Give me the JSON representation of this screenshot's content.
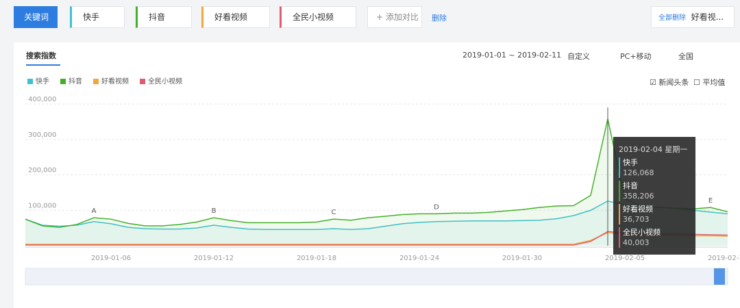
{
  "tabs": {
    "keyword": "关键词",
    "terms": [
      "快手",
      "抖音",
      "好看视频",
      "全民小视频"
    ],
    "add": "+ 添加对比",
    "clear": "删除"
  },
  "right": {
    "link": "全部删除",
    "term": "好看视..."
  },
  "toolbar": {
    "title": "搜索指数",
    "range": "2019-01-01 ~ 2019-02-11",
    "mode": "自定义",
    "device": "PC+移动",
    "region": "全国"
  },
  "options": [
    "新闻头条",
    "平均值"
  ],
  "tooltip": {
    "title": "2019-02-04 星期一",
    "labels": [
      "126,068",
      "358,206",
      "36,703",
      "40,003"
    ]
  },
  "chart_data": {
    "type": "line",
    "x": [
      "2019-01-01",
      "2019-01-02",
      "2019-01-03",
      "2019-01-04",
      "2019-01-05",
      "2019-01-06",
      "2019-01-07",
      "2019-01-08",
      "2019-01-09",
      "2019-01-10",
      "2019-01-11",
      "2019-01-12",
      "2019-01-13",
      "2019-01-14",
      "2019-01-15",
      "2019-01-16",
      "2019-01-17",
      "2019-01-18",
      "2019-01-19",
      "2019-01-20",
      "2019-01-21",
      "2019-01-22",
      "2019-01-23",
      "2019-01-24",
      "2019-01-25",
      "2019-01-26",
      "2019-01-27",
      "2019-01-28",
      "2019-01-29",
      "2019-01-30",
      "2019-01-31",
      "2019-02-01",
      "2019-02-02",
      "2019-02-03",
      "2019-02-04",
      "2019-02-05",
      "2019-02-06",
      "2019-02-07",
      "2019-02-08",
      "2019-02-09",
      "2019-02-10",
      "2019-02-11"
    ],
    "series": [
      {
        "name": "快手",
        "color": "#3ec1d3",
        "area": true,
        "values": [
          75000,
          58000,
          55000,
          58000,
          68000,
          62000,
          52000,
          48000,
          47000,
          47000,
          50000,
          58000,
          52000,
          47000,
          46000,
          46000,
          46000,
          46000,
          48000,
          46000,
          48000,
          55000,
          62000,
          66000,
          68000,
          69000,
          70000,
          70000,
          70000,
          71000,
          72000,
          76000,
          85000,
          100000,
          126068,
          115000,
          110000,
          108000,
          105000,
          100000,
          95000,
          90000
        ]
      },
      {
        "name": "抖音",
        "color": "#43b02a",
        "area": true,
        "values": [
          75000,
          56000,
          52000,
          60000,
          79000,
          75000,
          63000,
          56000,
          56000,
          60000,
          67000,
          79000,
          71000,
          65000,
          65000,
          65000,
          65000,
          67000,
          75000,
          72000,
          79000,
          83000,
          88000,
          90000,
          90000,
          92000,
          92000,
          94000,
          98000,
          102000,
          108000,
          112000,
          113000,
          142000,
          358206,
          133000,
          110000,
          108000,
          106000,
          104000,
          108000,
          96000
        ]
      },
      {
        "name": "好看视频",
        "color": "#f3a63b",
        "area": false,
        "values": [
          4000,
          4000,
          4000,
          4000,
          4000,
          4000,
          4000,
          4000,
          4000,
          4000,
          4000,
          4000,
          4000,
          4000,
          4000,
          4000,
          4000,
          4000,
          4000,
          4000,
          4000,
          4000,
          4000,
          4000,
          4000,
          4000,
          4000,
          4000,
          4000,
          4000,
          4000,
          4000,
          4000,
          15000,
          36703,
          32000,
          30000,
          29000,
          29000,
          28000,
          28000,
          27000
        ]
      },
      {
        "name": "全民小视频",
        "color": "#e05d6f",
        "area": false,
        "values": [
          2000,
          2000,
          2000,
          2000,
          2000,
          2000,
          2000,
          2000,
          2000,
          2000,
          2000,
          2000,
          2000,
          2000,
          2000,
          2000,
          2000,
          2000,
          2000,
          2000,
          2000,
          2000,
          2000,
          2000,
          2000,
          2000,
          2000,
          2000,
          2000,
          2000,
          2000,
          2000,
          2000,
          12000,
          40003,
          36000,
          34000,
          33000,
          33000,
          32000,
          31000,
          30000
        ]
      }
    ],
    "ylim": [
      0,
      400000
    ],
    "yticks": [
      {
        "value": 100000,
        "label": "100,000"
      },
      {
        "value": 200000,
        "label": "200,000"
      },
      {
        "value": 300000,
        "label": "300,000"
      },
      {
        "value": 400000,
        "label": "400,000"
      }
    ],
    "grid": true,
    "annotations": [
      {
        "label": "A",
        "x": "2019-01-05"
      },
      {
        "label": "B",
        "x": "2019-01-12"
      },
      {
        "label": "C",
        "x": "2019-01-19"
      },
      {
        "label": "D",
        "x": "2019-01-25"
      },
      {
        "label": "E",
        "x": "2019-02-10"
      }
    ]
  }
}
